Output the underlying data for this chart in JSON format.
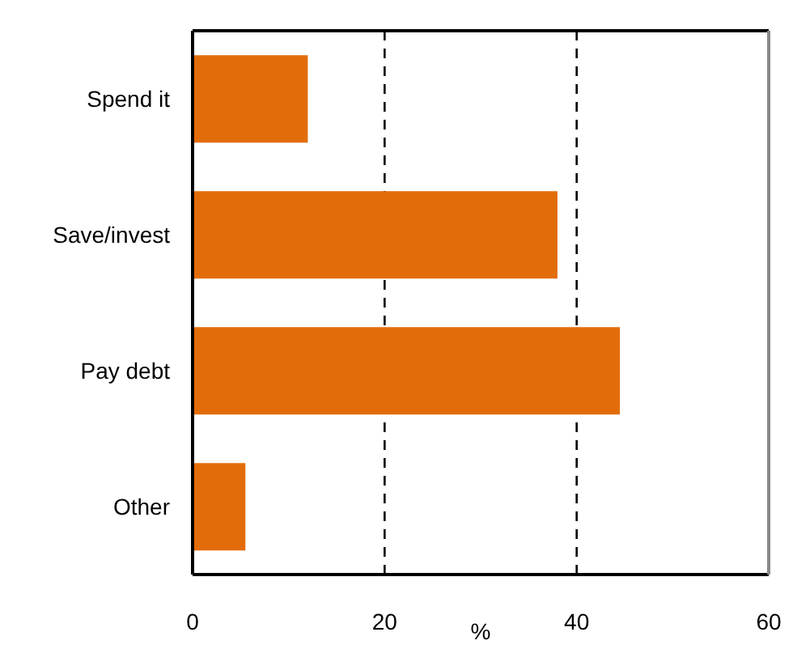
{
  "chart_data": {
    "type": "bar",
    "orientation": "horizontal",
    "categories": [
      "Spend it",
      "Save/invest",
      "Pay debt",
      "Other"
    ],
    "values": [
      12,
      38,
      44.5,
      5.5
    ],
    "color": "#e36c0a",
    "xlabel": "%",
    "xlim": [
      0,
      60
    ],
    "xticks": [
      0,
      20,
      40,
      60
    ],
    "grid": "x"
  }
}
